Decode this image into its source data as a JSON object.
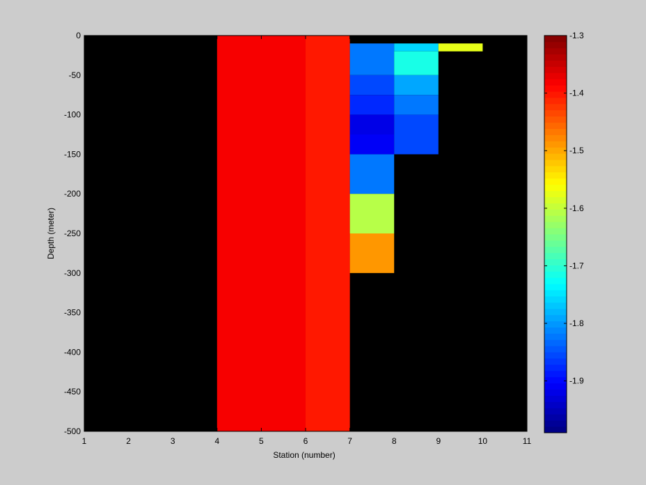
{
  "chart_data": {
    "type": "heatmap",
    "title": "",
    "xlabel": "Station (number)",
    "ylabel": "Depth (meter)",
    "xlim": [
      1,
      11
    ],
    "ylim": [
      -500,
      0
    ],
    "x_ticks": [
      1,
      2,
      3,
      4,
      5,
      6,
      7,
      8,
      9,
      10,
      11
    ],
    "y_ticks": [
      0,
      -50,
      -100,
      -150,
      -200,
      -250,
      -300,
      -350,
      -400,
      -450,
      -500
    ],
    "background_color": "#000000",
    "grid": false,
    "colormap": "jet",
    "colorbar": {
      "range": [
        -1.99,
        -1.3
      ],
      "ticks": [
        -1.3,
        -1.4,
        -1.5,
        -1.6,
        -1.7,
        -1.8,
        -1.9
      ],
      "tick_labels": [
        "-1.3",
        "-1.4",
        "-1.5",
        "-1.6",
        "-1.7",
        "-1.8",
        "-1.9"
      ]
    },
    "cells": [
      {
        "x0": 4,
        "x1": 6,
        "y_top": 0,
        "y_bottom": -500,
        "value": -1.385
      },
      {
        "x0": 6,
        "x1": 7,
        "y_top": 0,
        "y_bottom": -500,
        "value": -1.4
      },
      {
        "x0": 7,
        "x1": 8,
        "y_top": 0,
        "y_bottom": -10,
        "value": null
      },
      {
        "x0": 7,
        "x1": 8,
        "y_top": -10,
        "y_bottom": -50,
        "value": -1.82
      },
      {
        "x0": 7,
        "x1": 8,
        "y_top": -50,
        "y_bottom": -75,
        "value": -1.85
      },
      {
        "x0": 7,
        "x1": 8,
        "y_top": -75,
        "y_bottom": -100,
        "value": -1.88
      },
      {
        "x0": 7,
        "x1": 8,
        "y_top": -100,
        "y_bottom": -125,
        "value": -1.92
      },
      {
        "x0": 7,
        "x1": 8,
        "y_top": -125,
        "y_bottom": -150,
        "value": -1.91
      },
      {
        "x0": 7,
        "x1": 8,
        "y_top": -150,
        "y_bottom": -200,
        "value": -1.82
      },
      {
        "x0": 7,
        "x1": 8,
        "y_top": -200,
        "y_bottom": -250,
        "value": -1.61
      },
      {
        "x0": 7,
        "x1": 8,
        "y_top": -250,
        "y_bottom": -300,
        "value": -1.49
      },
      {
        "x0": 8,
        "x1": 9,
        "y_top": -10,
        "y_bottom": -20,
        "value": -1.76
      },
      {
        "x0": 8,
        "x1": 9,
        "y_top": -20,
        "y_bottom": -50,
        "value": -1.72
      },
      {
        "x0": 8,
        "x1": 9,
        "y_top": -50,
        "y_bottom": -75,
        "value": -1.79
      },
      {
        "x0": 8,
        "x1": 9,
        "y_top": -75,
        "y_bottom": -100,
        "value": -1.82
      },
      {
        "x0": 8,
        "x1": 9,
        "y_top": -100,
        "y_bottom": -150,
        "value": -1.85
      },
      {
        "x0": 9,
        "x1": 10,
        "y_top": -10,
        "y_bottom": -20,
        "value": -1.58
      }
    ]
  }
}
